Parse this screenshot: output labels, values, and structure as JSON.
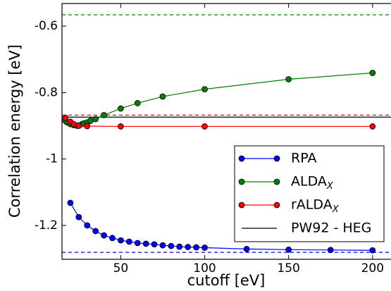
{
  "chart_data": {
    "type": "line",
    "xlabel": "cutoff [eV]",
    "ylabel": "Correlation energy [eV]",
    "xlim": [
      15,
      211
    ],
    "ylim": [
      -1.302,
      -0.532
    ],
    "xticks": [
      50,
      100,
      150,
      200
    ],
    "yticks": [
      -1.2,
      -1.0,
      -0.8,
      -0.6
    ],
    "legend": "lower right",
    "series": [
      {
        "name": "RPA",
        "color": "#0000ff",
        "x": [
          20,
          25,
          30,
          35,
          40,
          45,
          50,
          55,
          60,
          65,
          70,
          75,
          80,
          85,
          90,
          95,
          100,
          125,
          150,
          175,
          200
        ],
        "values": [
          -1.132,
          -1.175,
          -1.2,
          -1.217,
          -1.23,
          -1.238,
          -1.245,
          -1.249,
          -1.253,
          -1.255,
          -1.257,
          -1.26,
          -1.262,
          -1.264,
          -1.265,
          -1.266,
          -1.267,
          -1.271,
          -1.273,
          -1.274,
          -1.275
        ]
      },
      {
        "name": "ALDA_X",
        "color": "#008000",
        "x": [
          17,
          18,
          20,
          22,
          24,
          25,
          27,
          28,
          30,
          32,
          35,
          40,
          50,
          60,
          75,
          100,
          150,
          200
        ],
        "values": [
          -0.885,
          -0.89,
          -0.895,
          -0.898,
          -0.9,
          -0.899,
          -0.895,
          -0.893,
          -0.89,
          -0.885,
          -0.88,
          -0.868,
          -0.848,
          -0.832,
          -0.812,
          -0.79,
          -0.76,
          -0.741
        ]
      },
      {
        "name": "rALDA_X",
        "color": "#ff0000",
        "x": [
          17,
          20,
          22,
          25,
          30,
          50,
          100,
          200
        ],
        "values": [
          -0.876,
          -0.888,
          -0.895,
          -0.9,
          -0.901,
          -0.902,
          -0.902,
          -0.902
        ]
      }
    ],
    "hlines": [
      {
        "name": "PW92 - HEG",
        "value": -0.874,
        "color": "#000000",
        "style": "solid"
      },
      {
        "value": -0.566,
        "color": "#008000",
        "style": "dashed"
      },
      {
        "value": -0.868,
        "color": "#ff0000",
        "style": "dashed"
      },
      {
        "value": -1.281,
        "color": "#0000ff",
        "style": "dashed"
      }
    ]
  }
}
